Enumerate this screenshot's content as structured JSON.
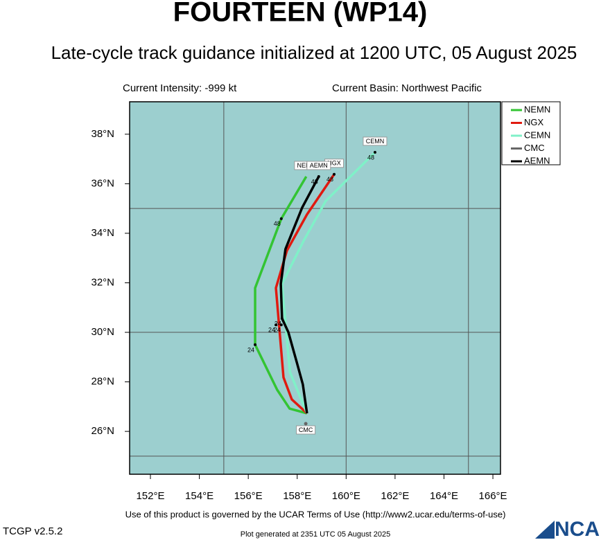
{
  "chart_data": {
    "type": "line",
    "title": "FOURTEEN (WP14)",
    "subtitle": "Late-cycle track guidance initialized at 1200 UTC, 05 August 2025",
    "intensity": "Current Intensity: -999 kt",
    "basin": "Current Basin: Northwest Pacific",
    "terms": "Use of this product is governed by the UCAR Terms of Use (http://www2.ucar.edu/terms-of-use)",
    "version": "TCGP v2.5.2",
    "generated": "Plot generated at 2351 UTC   05 August 2025",
    "logo": "NCAR",
    "background": "#9ccfcf",
    "xlim": [
      151.15,
      166.31
    ],
    "ylim": [
      24.27,
      39.31
    ],
    "xticks": [
      {
        "value": 152,
        "label": "152°E"
      },
      {
        "value": 154,
        "label": "154°E"
      },
      {
        "value": 156,
        "label": "156°E"
      },
      {
        "value": 158,
        "label": "158°E"
      },
      {
        "value": 160,
        "label": "160°E"
      },
      {
        "value": 162,
        "label": "162°E"
      },
      {
        "value": 164,
        "label": "164°E"
      },
      {
        "value": 166,
        "label": "166°E"
      }
    ],
    "yticks": [
      {
        "value": 26,
        "label": "26°N"
      },
      {
        "value": 28,
        "label": "28°N"
      },
      {
        "value": 30,
        "label": "30°N"
      },
      {
        "value": 32,
        "label": "32°N"
      },
      {
        "value": 34,
        "label": "34°N"
      },
      {
        "value": 36,
        "label": "36°N"
      },
      {
        "value": 38,
        "label": "38°N"
      }
    ],
    "xgrid": [
      155,
      160,
      165
    ],
    "ygrid": [
      25,
      30,
      35
    ],
    "series": [
      {
        "name": "NEMN",
        "color": "#33c433",
        "x": [
          158.4,
          157.69,
          157.18,
          156.28,
          156.28,
          157.35,
          158.37
        ],
        "values": [
          26.73,
          26.92,
          27.68,
          29.5,
          31.79,
          34.59,
          36.29
        ]
      },
      {
        "name": "NGX",
        "color": "#e01a10",
        "x": [
          158.4,
          157.78,
          157.44,
          157.13,
          157.58,
          158.4,
          159.51
        ],
        "values": [
          26.73,
          27.29,
          28.18,
          31.79,
          33.3,
          34.76,
          36.38
        ]
      },
      {
        "name": "CEMN",
        "color": "#80f0c8",
        "x": [
          158.4,
          157.7,
          157.38,
          158.26,
          159.17,
          161.18
        ],
        "values": [
          26.73,
          28.4,
          31.96,
          33.69,
          35.31,
          37.27
        ]
      },
      {
        "name": "CMC",
        "color": "#666666",
        "x": [
          158.35
        ],
        "values": [
          26.31
        ]
      },
      {
        "name": "AEMN",
        "color": "#000000",
        "x": [
          158.4,
          158.23,
          157.98,
          157.64,
          157.38,
          157.33,
          157.52,
          158.2,
          158.88
        ],
        "values": [
          26.73,
          27.9,
          28.8,
          30.0,
          30.56,
          31.96,
          33.36,
          35.03,
          36.29
        ]
      }
    ],
    "annotations": [
      {
        "text": "48",
        "x": 157.35,
        "y": 34.59
      },
      {
        "text": "24",
        "x": 156.28,
        "y": 29.5
      },
      {
        "text": "48",
        "x": 158.88,
        "y": 36.29
      },
      {
        "text": "48",
        "x": 159.51,
        "y": 36.38
      },
      {
        "text": "48",
        "x": 161.18,
        "y": 37.27
      },
      {
        "text": "24",
        "x": 157.38,
        "y": 30.56
      },
      {
        "text": "24",
        "x": 157.13,
        "y": 30.3
      },
      {
        "text": "24",
        "x": 157.35,
        "y": 30.3
      }
    ]
  }
}
